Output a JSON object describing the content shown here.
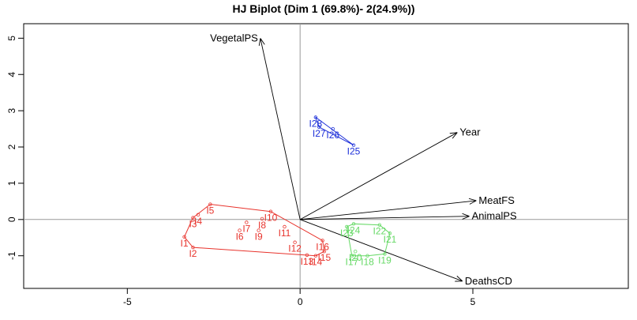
{
  "chart_data": {
    "type": "scatter",
    "title": "HJ Biplot (Dim 1 (69.8%)- 2(24.9%))",
    "xlabel": "",
    "ylabel": "",
    "xlim": [
      -8,
      9.5
    ],
    "ylim": [
      -1.9,
      5.4
    ],
    "xticks": [
      -5,
      0,
      5
    ],
    "yticks": [
      -1,
      0,
      1,
      2,
      3,
      4,
      5
    ],
    "grid": false,
    "vectors": [
      {
        "name": "VegetalPS",
        "x": -1.15,
        "y": 5.0
      },
      {
        "name": "Year",
        "x": 4.55,
        "y": 2.4
      },
      {
        "name": "MeatFS",
        "x": 5.1,
        "y": 0.52
      },
      {
        "name": "AnimalPS",
        "x": 4.9,
        "y": 0.09
      },
      {
        "name": "DeathsCD",
        "x": 4.7,
        "y": -1.7
      }
    ],
    "groups": [
      {
        "color": "#e8332c",
        "points": [
          {
            "label": "I1",
            "x": -3.35,
            "y": -0.48
          },
          {
            "label": "I2",
            "x": -3.1,
            "y": -0.77
          },
          {
            "label": "I3",
            "x": -3.1,
            "y": 0.05
          },
          {
            "label": "I4",
            "x": -2.95,
            "y": 0.13
          },
          {
            "label": "I5",
            "x": -2.6,
            "y": 0.42
          },
          {
            "label": "I6",
            "x": -1.75,
            "y": -0.3
          },
          {
            "label": "I7",
            "x": -1.55,
            "y": -0.08
          },
          {
            "label": "I8",
            "x": -1.1,
            "y": 0.02
          },
          {
            "label": "I9",
            "x": -1.2,
            "y": -0.3
          },
          {
            "label": "I10",
            "x": -0.85,
            "y": 0.22
          },
          {
            "label": "I11",
            "x": -0.45,
            "y": -0.2
          },
          {
            "label": "I12",
            "x": -0.15,
            "y": -0.63
          },
          {
            "label": "I13",
            "x": 0.2,
            "y": -0.98
          },
          {
            "label": "I14",
            "x": 0.45,
            "y": -1.0
          },
          {
            "label": "I15",
            "x": 0.7,
            "y": -0.88
          },
          {
            "label": "I16",
            "x": 0.65,
            "y": -0.58
          }
        ],
        "hull": [
          "I1",
          "I2",
          "I14",
          "I15",
          "I16",
          "I10",
          "I5",
          "I3"
        ]
      },
      {
        "color": "#66d966",
        "points": [
          {
            "label": "I17",
            "x": 1.5,
            "y": -1.0
          },
          {
            "label": "I18",
            "x": 1.95,
            "y": -1.0
          },
          {
            "label": "I19",
            "x": 2.45,
            "y": -0.95
          },
          {
            "label": "I20",
            "x": 1.6,
            "y": -0.88
          },
          {
            "label": "I21",
            "x": 2.6,
            "y": -0.38
          },
          {
            "label": "I22",
            "x": 2.3,
            "y": -0.15
          },
          {
            "label": "I23",
            "x": 1.35,
            "y": -0.2
          },
          {
            "label": "I24",
            "x": 1.55,
            "y": -0.12
          }
        ],
        "hull": [
          "I17",
          "I18",
          "I19",
          "I21",
          "I22",
          "I24",
          "I23"
        ]
      },
      {
        "color": "#1d2fd9",
        "points": [
          {
            "label": "I25",
            "x": 1.55,
            "y": 2.05
          },
          {
            "label": "I26",
            "x": 0.95,
            "y": 2.5
          },
          {
            "label": "I27",
            "x": 0.55,
            "y": 2.55
          },
          {
            "label": "I28",
            "x": 0.45,
            "y": 2.82
          }
        ],
        "hull": [
          "I28",
          "I25",
          "I27"
        ]
      }
    ]
  }
}
